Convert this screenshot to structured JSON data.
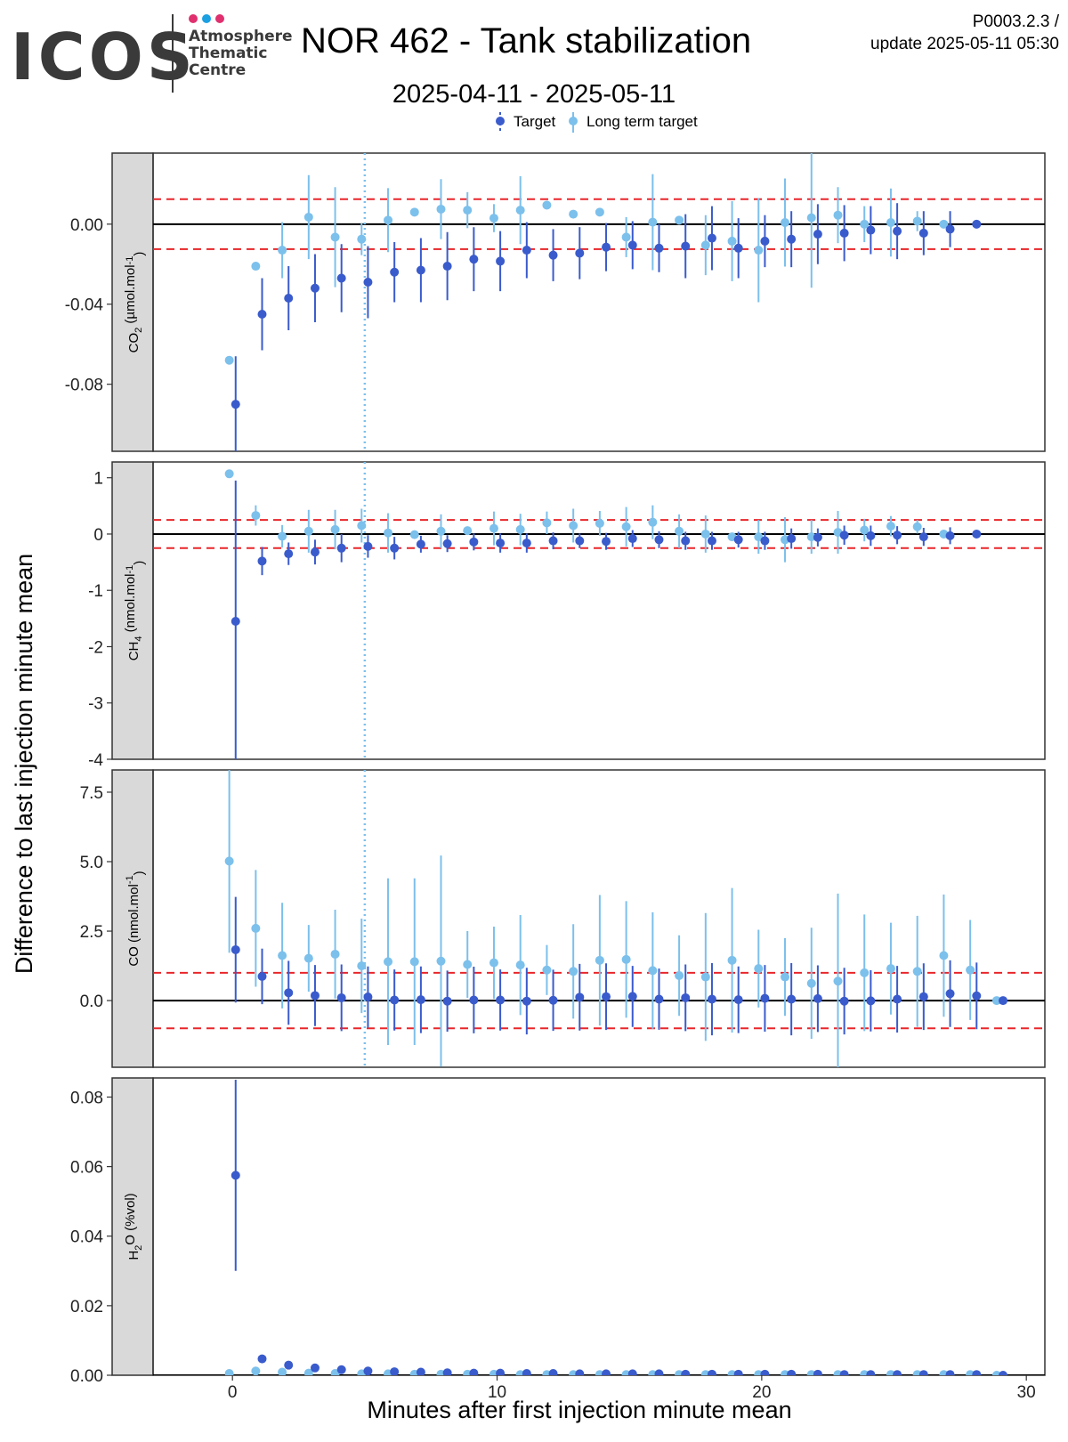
{
  "header": {
    "logo_main": "ICOS",
    "logo_sub_lines": [
      "Atmosphere",
      "Thematic",
      "Centre"
    ],
    "logo_dot_colors": [
      "#e0306e",
      "#1ba0e2",
      "#e0306e"
    ],
    "title": "NOR 462 - Tank stabilization",
    "subtitle": "2025-04-11 - 2025-05-11",
    "version_line1": "P0003.2.3 /",
    "version_line2": "update  2025-05-11 05:30"
  },
  "chart_data": {
    "type": "scatter",
    "subtype": "faceted point-range (mean ± error bars)",
    "xlabel": "Minutes after first injection minute mean",
    "ylabel": "Difference to last injection minute mean",
    "xlim": [
      -3,
      30.7
    ],
    "x_ticks": [
      0,
      10,
      20,
      30
    ],
    "vline_x": 5,
    "legend": {
      "placement": "top-center",
      "entries": [
        "Target",
        "Long term target"
      ]
    },
    "colors": {
      "Target": "#3a5bcc",
      "Long term target": "#7cc0ec",
      "threshold": "#e8262a",
      "zero": "#000000",
      "vline": "#7cc0ec"
    },
    "panels": [
      {
        "label_prefix": "CO",
        "label_sub": "2",
        "label_unit": " (µmol.mol",
        "label_sup": "-1",
        "label_close": ")",
        "ylim": [
          -0.1135,
          0.0355
        ],
        "y_ticks": [
          0.0,
          -0.04,
          -0.08
        ],
        "y_tick_labels": [
          "0.00",
          "-0.04",
          "-0.08"
        ],
        "threshold": 0.0125,
        "series": [
          {
            "name": "Target",
            "x_offset": 0.12,
            "y": [
              -0.09,
              -0.045,
              -0.037,
              -0.032,
              -0.027,
              -0.029,
              -0.024,
              -0.023,
              -0.021,
              -0.0175,
              -0.0185,
              -0.013,
              -0.0155,
              -0.0145,
              -0.0115,
              -0.0105,
              -0.012,
              -0.011,
              -0.007,
              -0.012,
              -0.0085,
              -0.0075,
              -0.005,
              -0.0045,
              -0.003,
              -0.0035,
              -0.0045,
              -0.0025,
              0.0
            ],
            "err": [
              0.024,
              0.018,
              0.016,
              0.017,
              0.017,
              0.018,
              0.015,
              0.016,
              0.017,
              0.016,
              0.015,
              0.014,
              0.013,
              0.013,
              0.012,
              0.012,
              0.012,
              0.016,
              0.016,
              0.015,
              0.013,
              0.014,
              0.015,
              0.014,
              0.012,
              0.014,
              0.011,
              0.009,
              0.0
            ]
          },
          {
            "name": "Long term target",
            "x_offset": -0.12,
            "y": [
              -0.068,
              -0.021,
              -0.013,
              0.0035,
              -0.0065,
              -0.0075,
              0.002,
              0.006,
              0.0075,
              0.007,
              0.003,
              0.007,
              0.0095,
              0.005,
              0.006,
              -0.0065,
              0.001,
              0.002,
              -0.0105,
              -0.0085,
              -0.013,
              0.0008,
              0.0032,
              0.0045,
              0.0,
              0.0008,
              0.0015,
              0.0
            ],
            "err": [
              0.0,
              0.0,
              0.014,
              0.021,
              0.025,
              0.008,
              0.016,
              0.0,
              0.015,
              0.009,
              0.007,
              0.017,
              0.0,
              0.0,
              0.0,
              0.01,
              0.024,
              0.0,
              0.015,
              0.02,
              0.026,
              0.022,
              0.035,
              0.014,
              0.009,
              0.017,
              0.005,
              0.0
            ]
          }
        ]
      },
      {
        "label_prefix": "CH",
        "label_sub": "4",
        "label_unit": " (nmol.mol",
        "label_sup": "-1",
        "label_close": ")",
        "ylim": [
          -4.0,
          1.28
        ],
        "y_ticks": [
          1,
          0,
          -1,
          -2,
          -3,
          -4
        ],
        "y_tick_labels": [
          "1",
          "0",
          "-1",
          "-2",
          "-3",
          "-4"
        ],
        "threshold": 0.25,
        "series": [
          {
            "name": "Target",
            "x_offset": 0.12,
            "y": [
              -1.55,
              -0.48,
              -0.35,
              -0.32,
              -0.25,
              -0.22,
              -0.25,
              -0.18,
              -0.17,
              -0.14,
              -0.16,
              -0.16,
              -0.12,
              -0.12,
              -0.13,
              -0.08,
              -0.1,
              -0.12,
              -0.12,
              -0.1,
              -0.12,
              -0.08,
              -0.06,
              -0.02,
              -0.03,
              -0.02,
              -0.05,
              -0.03,
              -0.0
            ],
            "err": [
              2.5,
              0.25,
              0.2,
              0.22,
              0.25,
              0.2,
              0.2,
              0.15,
              0.15,
              0.15,
              0.17,
              0.17,
              0.15,
              0.13,
              0.15,
              0.15,
              0.15,
              0.16,
              0.16,
              0.14,
              0.16,
              0.18,
              0.16,
              0.17,
              0.18,
              0.16,
              0.16,
              0.15,
              0.0
            ]
          },
          {
            "name": "Long term target",
            "x_offset": -0.12,
            "y": [
              1.07,
              0.33,
              -0.04,
              0.05,
              0.08,
              0.15,
              0.02,
              -0.01,
              0.05,
              0.06,
              0.1,
              0.08,
              0.2,
              0.15,
              0.19,
              0.13,
              0.21,
              0.05,
              0.0,
              -0.05,
              -0.05,
              -0.1,
              -0.05,
              0.03,
              0.07,
              0.14,
              0.13,
              0.0
            ],
            "err": [
              0.0,
              0.18,
              0.2,
              0.38,
              0.35,
              0.3,
              0.35,
              0.0,
              0.3,
              0.0,
              0.3,
              0.28,
              0.2,
              0.3,
              0.22,
              0.35,
              0.3,
              0.3,
              0.33,
              0.0,
              0.3,
              0.4,
              0.3,
              0.38,
              0.2,
              0.18,
              0.12,
              0.0
            ]
          }
        ]
      },
      {
        "label_prefix": "CO (nmol.mol",
        "label_sub": "",
        "label_unit": "",
        "label_sup": "-1",
        "label_close": ")",
        "ylim": [
          -2.4,
          8.3
        ],
        "y_ticks": [
          7.5,
          5.0,
          2.5,
          0.0
        ],
        "y_tick_labels": [
          "7.5",
          "5.0",
          "2.5",
          "0.0"
        ],
        "threshold": 1.0,
        "series": [
          {
            "name": "Target",
            "x_offset": 0.12,
            "y": [
              1.83,
              0.87,
              0.28,
              0.18,
              0.1,
              0.13,
              0.02,
              0.03,
              -0.02,
              0.02,
              0.02,
              -0.02,
              0.01,
              0.12,
              0.14,
              0.15,
              0.05,
              0.1,
              0.05,
              0.03,
              0.08,
              0.05,
              0.07,
              -0.02,
              -0.01,
              0.05,
              0.14,
              0.25,
              0.17,
              0.0
            ],
            "err": [
              1.9,
              1.0,
              1.15,
              1.1,
              1.2,
              1.1,
              1.1,
              1.2,
              1.1,
              1.2,
              1.1,
              1.2,
              1.1,
              1.2,
              1.2,
              1.1,
              1.1,
              1.2,
              1.3,
              1.2,
              1.2,
              1.3,
              1.2,
              1.2,
              1.1,
              1.2,
              1.2,
              1.2,
              1.2,
              0.0
            ]
          },
          {
            "name": "Long term target",
            "x_offset": -0.12,
            "y": [
              5.02,
              2.6,
              1.62,
              1.52,
              1.67,
              1.25,
              1.4,
              1.4,
              1.42,
              1.3,
              1.36,
              1.28,
              1.1,
              1.05,
              1.45,
              1.48,
              1.08,
              0.9,
              0.85,
              1.45,
              1.15,
              0.85,
              0.62,
              0.7,
              1.0,
              1.15,
              1.05,
              1.62,
              1.1,
              0.0
            ],
            "err": [
              3.3,
              2.1,
              1.9,
              1.2,
              1.6,
              1.7,
              3.0,
              3.0,
              3.8,
              1.2,
              1.3,
              1.8,
              0.9,
              1.7,
              2.35,
              2.1,
              2.1,
              1.45,
              2.3,
              2.6,
              1.4,
              1.4,
              2.0,
              3.15,
              2.1,
              1.65,
              2.0,
              2.2,
              1.8,
              0.0
            ]
          }
        ]
      },
      {
        "label_prefix": "H",
        "label_sub": "2",
        "label_unit": "O (%vol)",
        "label_sup": "",
        "label_close": "",
        "ylim": [
          0.0,
          0.0855
        ],
        "y_ticks": [
          0.08,
          0.06,
          0.04,
          0.02,
          0.0
        ],
        "y_tick_labels": [
          "0.08",
          "0.06",
          "0.04",
          "0.02",
          "0.00"
        ],
        "threshold": null,
        "series": [
          {
            "name": "Target",
            "x_offset": 0.12,
            "y": [
              0.0575,
              0.0047,
              0.0029,
              0.0021,
              0.0016,
              0.0012,
              0.001,
              0.0009,
              0.0007,
              0.0006,
              0.0006,
              0.0005,
              0.0005,
              0.0004,
              0.0004,
              0.0004,
              0.0004,
              0.0003,
              0.0003,
              0.0003,
              0.0003,
              0.0003,
              0.0003,
              0.0002,
              0.0002,
              0.0002,
              0.0002,
              0.0002,
              0.0002,
              0.0
            ],
            "err": [
              0.0275,
              0.0,
              0.0,
              0.0,
              0.0,
              0.0,
              0.0,
              0.0,
              0.0,
              0.0,
              0.0,
              0.0,
              0.0,
              0.0,
              0.0,
              0.0,
              0.0,
              0.0,
              0.0,
              0.0,
              0.0,
              0.0,
              0.0,
              0.0,
              0.0,
              0.0,
              0.0,
              0.0,
              0.0,
              0.0
            ]
          },
          {
            "name": "Long term target",
            "x_offset": -0.12,
            "y": [
              0.0005,
              0.0012,
              0.0009,
              0.0006,
              0.0005,
              0.0004,
              0.0004,
              0.0003,
              0.0003,
              0.0003,
              0.0003,
              0.0002,
              0.0002,
              0.0002,
              0.0002,
              0.0002,
              0.0002,
              0.0002,
              0.0002,
              0.0002,
              0.0002,
              0.0002,
              0.0002,
              0.0002,
              0.0002,
              0.0002,
              0.0002,
              0.0002,
              0.0002,
              0.0
            ],
            "err": [
              0.0,
              0.0,
              0.0,
              0.0,
              0.0,
              0.0,
              0.0,
              0.0,
              0.0,
              0.0,
              0.0,
              0.0,
              0.0,
              0.0,
              0.0,
              0.0,
              0.0,
              0.0,
              0.0,
              0.0,
              0.0,
              0.0,
              0.0,
              0.0,
              0.0,
              0.0,
              0.0,
              0.0,
              0.0,
              0.0
            ]
          }
        ]
      }
    ]
  }
}
